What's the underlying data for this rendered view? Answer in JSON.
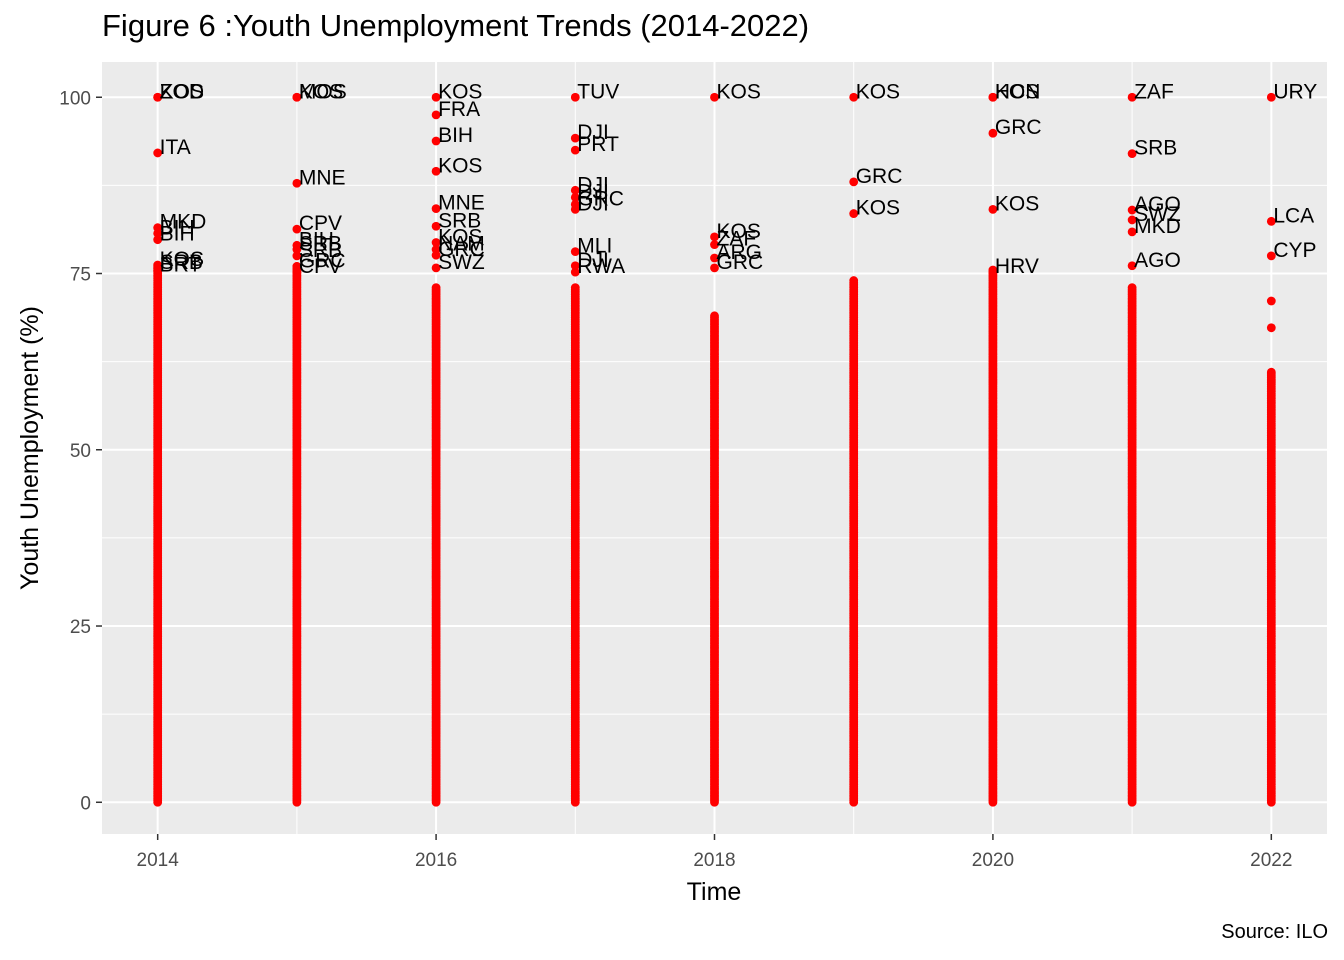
{
  "chart_data": {
    "type": "scatter",
    "title": "Figure 6 :Youth Unemployment Trends (2014-2022)",
    "xlabel": "Time",
    "ylabel": "Youth Unemployment (%)",
    "caption": "Source: ILO",
    "xlim": [
      2013.6,
      2022.4
    ],
    "ylim": [
      -4.5,
      105
    ],
    "xticks": [
      2014,
      2016,
      2018,
      2020,
      2022
    ],
    "yticks": [
      0,
      25,
      50,
      75,
      100
    ],
    "grid": true,
    "point_color": "#ff0000",
    "panel_background": "#ebebeb",
    "columns": [
      {
        "x": 2014,
        "dense_max": 76,
        "points": [
          {
            "y": 100,
            "label": "ZOD"
          },
          {
            "y": 100,
            "label": "KOS"
          },
          {
            "y": 92.1,
            "label": "ITA"
          },
          {
            "y": 81.5,
            "label": "MKD"
          },
          {
            "y": 80.7,
            "label": "BIH"
          },
          {
            "y": 79.8,
            "label": "BIH"
          },
          {
            "y": 76.2,
            "label": "KOS"
          },
          {
            "y": 75.8,
            "label": "SRB"
          },
          {
            "y": 75.4,
            "label": "BRT"
          }
        ]
      },
      {
        "x": 2015,
        "dense_max": 76,
        "points": [
          {
            "y": 100,
            "label": "MOS"
          },
          {
            "y": 100,
            "label": "KOS"
          },
          {
            "y": 87.8,
            "label": "MNE"
          },
          {
            "y": 81.3,
            "label": "CPV"
          },
          {
            "y": 79,
            "label": "BIH"
          },
          {
            "y": 78.4,
            "label": "SRB"
          },
          {
            "y": 77.5,
            "label": "SRB"
          },
          {
            "y": 76,
            "label": "GRC"
          },
          {
            "y": 75.2,
            "label": "CPV"
          }
        ]
      },
      {
        "x": 2016,
        "dense_max": 73,
        "points": [
          {
            "y": 100,
            "label": "KOS"
          },
          {
            "y": 97.5,
            "label": "FRA"
          },
          {
            "y": 93.8,
            "label": "BIH"
          },
          {
            "y": 89.5,
            "label": "KOS"
          },
          {
            "y": 84.2,
            "label": "MNE"
          },
          {
            "y": 81.7,
            "label": "SRB"
          },
          {
            "y": 79.4,
            "label": "KOS"
          },
          {
            "y": 78.4,
            "label": "NAM"
          },
          {
            "y": 77.6,
            "label": "GRC"
          },
          {
            "y": 75.8,
            "label": "SWZ"
          }
        ]
      },
      {
        "x": 2017,
        "dense_max": 73,
        "points": [
          {
            "y": 100,
            "label": "TUV"
          },
          {
            "y": 94.2,
            "label": "DJI"
          },
          {
            "y": 92.5,
            "label": "PRT"
          },
          {
            "y": 86.8,
            "label": "DJI"
          },
          {
            "y": 85.8,
            "label": "DJI"
          },
          {
            "y": 84.8,
            "label": "GRC"
          },
          {
            "y": 84.1,
            "label": "DJI"
          },
          {
            "y": 78.1,
            "label": "MLI"
          },
          {
            "y": 76.1,
            "label": "DJI"
          },
          {
            "y": 75.2,
            "label": "RWA"
          }
        ]
      },
      {
        "x": 2018,
        "dense_max": 69,
        "points": [
          {
            "y": 100,
            "label": "KOS"
          },
          {
            "y": 80.2,
            "label": "KOS"
          },
          {
            "y": 79.1,
            "label": "ZAF"
          },
          {
            "y": 77.2,
            "label": "ARG"
          },
          {
            "y": 75.8,
            "label": "GRC"
          }
        ]
      },
      {
        "x": 2019,
        "dense_max": 74,
        "points": [
          {
            "y": 100,
            "label": "KOS"
          },
          {
            "y": 88,
            "label": "GRC"
          },
          {
            "y": 83.5,
            "label": "KOS"
          }
        ]
      },
      {
        "x": 2020,
        "dense_max": 75.5,
        "points": [
          {
            "y": 100,
            "label": "KOS"
          },
          {
            "y": 100,
            "label": "HCN"
          },
          {
            "y": 94.9,
            "label": "GRC"
          },
          {
            "y": 84.1,
            "label": "KOS"
          },
          {
            "y": 75.2,
            "label": "HRV"
          }
        ]
      },
      {
        "x": 2021,
        "dense_max": 73,
        "points": [
          {
            "y": 100,
            "label": "ZAF"
          },
          {
            "y": 92,
            "label": "SRB"
          },
          {
            "y": 84,
            "label": "AGO"
          },
          {
            "y": 82.6,
            "label": "SWZ"
          },
          {
            "y": 80.9,
            "label": "MKD"
          },
          {
            "y": 76.1,
            "label": "AGO"
          }
        ]
      },
      {
        "x": 2022,
        "dense_max": 61,
        "points": [
          {
            "y": 100,
            "label": "URY"
          },
          {
            "y": 82.4,
            "label": "LCA"
          },
          {
            "y": 77.5,
            "label": "CYP"
          },
          {
            "y": 71.1
          },
          {
            "y": 67.3
          }
        ]
      }
    ]
  }
}
